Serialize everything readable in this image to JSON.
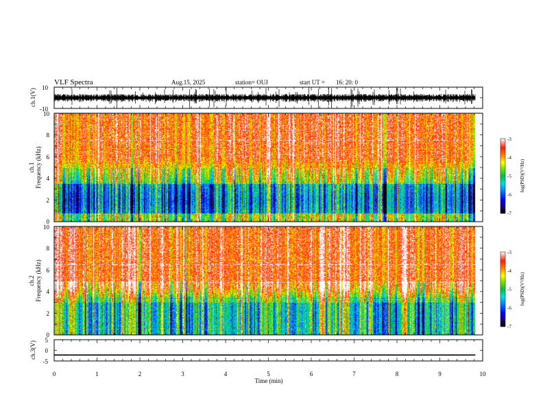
{
  "header": {
    "title": "VLF Spectra",
    "date": "Aug.15, 2025",
    "station": "station= OUJ",
    "start_label": "start  UT  =",
    "start_time": "16: 20: 0"
  },
  "chart_data": [
    {
      "id": "ch1-waveform",
      "type": "line",
      "ylabel": "ch.1(V)",
      "ylim": [
        -10,
        10
      ],
      "yticks": [
        "10",
        "-10"
      ],
      "xlim": [
        0,
        10
      ],
      "data_end_min": 9.83,
      "description_values": {
        "baseline": 0,
        "typical_amplitude": 3,
        "spike_amplitude": 10
      }
    },
    {
      "id": "ch1-spectrogram",
      "type": "heatmap",
      "ylabel_line1": "ch.1",
      "ylabel_line2": "Frequency  (kHz)",
      "ylim": [
        0,
        10
      ],
      "yticks": [
        "0",
        "2",
        "4",
        "6",
        "8",
        "10"
      ],
      "xlim": [
        0,
        10
      ],
      "data_end_min": 9.83,
      "colorbar": {
        "label": "log(PSD)(V²/Hz)",
        "range": [
          -7,
          -3
        ],
        "ticks": [
          "-3",
          "-4",
          "-5",
          "-6",
          "-7"
        ]
      }
    },
    {
      "id": "ch2-spectrogram",
      "type": "heatmap",
      "ylabel_line1": "ch.2",
      "ylabel_line2": "Frequency  (kHz)",
      "ylim": [
        0,
        10
      ],
      "yticks": [
        "0",
        "2",
        "4",
        "6",
        "8",
        "10"
      ],
      "xlim": [
        0,
        10
      ],
      "data_end_min": 9.83,
      "colorbar": {
        "label": "log(PSD)(V²/Hz)",
        "range": [
          -7,
          -3
        ],
        "ticks": [
          "-3",
          "-4",
          "-5",
          "-6",
          "-7"
        ]
      }
    },
    {
      "id": "ch3-waveform",
      "type": "line",
      "ylabel": "ch.3(V)",
      "ylim": [
        -5,
        5
      ],
      "yticks": [
        "5",
        "0",
        "-5"
      ],
      "xlim": [
        0,
        10
      ],
      "data_end_min": 9.83,
      "constant_value": -2.2
    }
  ],
  "xaxis": {
    "label": "Time  (min)",
    "ticks": [
      "0",
      "1",
      "2",
      "3",
      "4",
      "5",
      "6",
      "7",
      "8",
      "9",
      "10"
    ]
  },
  "colors": {
    "cmap": [
      "#000000",
      "#1a0070",
      "#0000ff",
      "#0080ff",
      "#00e0e0",
      "#00c040",
      "#80e000",
      "#ffff00",
      "#ff8000",
      "#ff2000",
      "#ffffff"
    ]
  }
}
